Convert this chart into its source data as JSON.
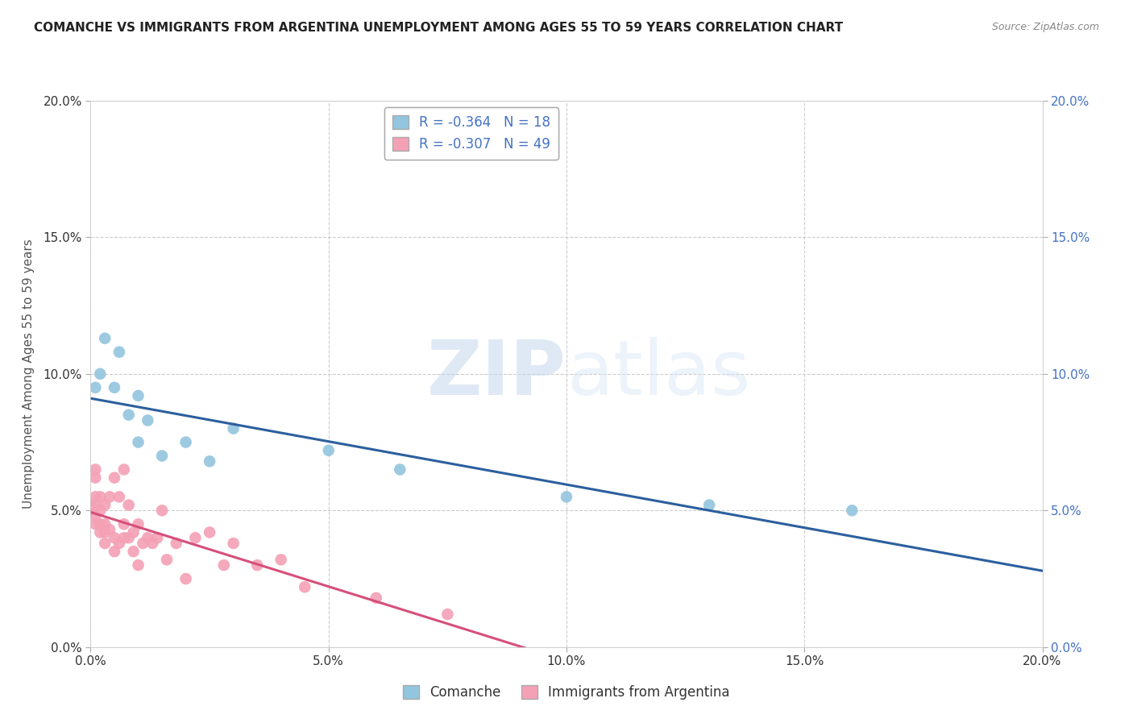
{
  "title": "COMANCHE VS IMMIGRANTS FROM ARGENTINA UNEMPLOYMENT AMONG AGES 55 TO 59 YEARS CORRELATION CHART",
  "source": "Source: ZipAtlas.com",
  "ylabel": "Unemployment Among Ages 55 to 59 years",
  "xlim": [
    0.0,
    0.2
  ],
  "ylim": [
    0.0,
    0.2
  ],
  "xticks": [
    0.0,
    0.05,
    0.1,
    0.15,
    0.2
  ],
  "yticks": [
    0.0,
    0.05,
    0.1,
    0.15,
    0.2
  ],
  "xtick_labels": [
    "0.0%",
    "5.0%",
    "10.0%",
    "15.0%",
    "20.0%"
  ],
  "ytick_labels": [
    "0.0%",
    "5.0%",
    "10.0%",
    "15.0%",
    "20.0%"
  ],
  "comanche_color": "#92c5de",
  "argentina_color": "#f4a0b5",
  "line_comanche_color": "#2c5f9e",
  "line_argentina_color": "#d64f7a",
  "comanche_R": -0.364,
  "comanche_N": 18,
  "argentina_R": -0.307,
  "argentina_N": 49,
  "watermark_zip": "ZIP",
  "watermark_atlas": "atlas",
  "background_color": "#ffffff",
  "grid_color": "#cccccc",
  "right_tick_color": "#4472c4",
  "comanche_x": [
    0.001,
    0.002,
    0.003,
    0.005,
    0.006,
    0.008,
    0.01,
    0.01,
    0.012,
    0.015,
    0.02,
    0.025,
    0.03,
    0.05,
    0.065,
    0.1,
    0.13,
    0.16
  ],
  "comanche_y": [
    0.095,
    0.1,
    0.113,
    0.095,
    0.108,
    0.085,
    0.092,
    0.075,
    0.083,
    0.07,
    0.075,
    0.068,
    0.08,
    0.072,
    0.065,
    0.055,
    0.052,
    0.05
  ],
  "argentina_x": [
    0.0,
    0.0,
    0.001,
    0.001,
    0.001,
    0.001,
    0.001,
    0.001,
    0.002,
    0.002,
    0.002,
    0.002,
    0.003,
    0.003,
    0.003,
    0.003,
    0.004,
    0.004,
    0.005,
    0.005,
    0.005,
    0.006,
    0.006,
    0.007,
    0.007,
    0.007,
    0.008,
    0.008,
    0.009,
    0.009,
    0.01,
    0.01,
    0.011,
    0.012,
    0.013,
    0.014,
    0.015,
    0.016,
    0.018,
    0.02,
    0.022,
    0.025,
    0.028,
    0.03,
    0.035,
    0.04,
    0.045,
    0.06,
    0.075
  ],
  "argentina_y": [
    0.05,
    0.052,
    0.045,
    0.048,
    0.052,
    0.055,
    0.062,
    0.065,
    0.042,
    0.045,
    0.05,
    0.055,
    0.038,
    0.042,
    0.045,
    0.052,
    0.043,
    0.055,
    0.035,
    0.04,
    0.062,
    0.038,
    0.055,
    0.04,
    0.045,
    0.065,
    0.04,
    0.052,
    0.035,
    0.042,
    0.03,
    0.045,
    0.038,
    0.04,
    0.038,
    0.04,
    0.05,
    0.032,
    0.038,
    0.025,
    0.04,
    0.042,
    0.03,
    0.038,
    0.03,
    0.032,
    0.022,
    0.018,
    0.012
  ]
}
